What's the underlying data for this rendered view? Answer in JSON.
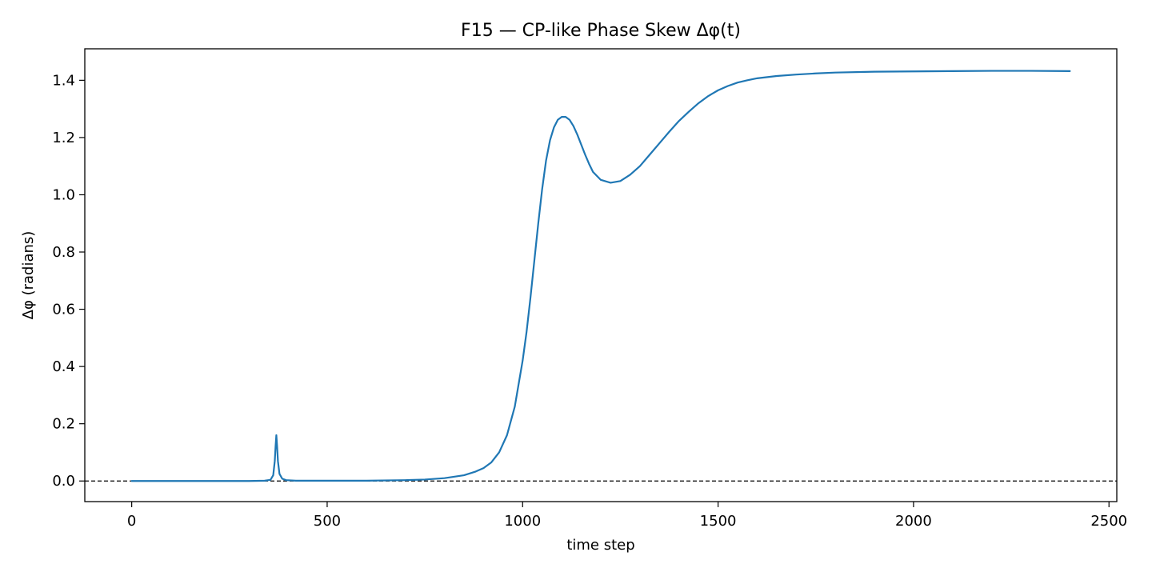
{
  "chart_data": {
    "type": "line",
    "title": "F15 — CP-like Phase Skew Δφ(t)",
    "xlabel": "time step",
    "ylabel": "Δφ (radians)",
    "xlim": [
      -120,
      2520
    ],
    "ylim": [
      -0.072,
      1.51
    ],
    "xticks": [
      0,
      500,
      1000,
      1500,
      2000,
      2500
    ],
    "xtick_labels": [
      "0",
      "500",
      "1000",
      "1500",
      "2000",
      "2500"
    ],
    "yticks": [
      0.0,
      0.2,
      0.4,
      0.6,
      0.8,
      1.0,
      1.2,
      1.4
    ],
    "ytick_labels": [
      "0.0",
      "0.2",
      "0.4",
      "0.6",
      "0.8",
      "1.0",
      "1.2",
      "1.4"
    ],
    "grid": false,
    "reference_line": {
      "y": 0.0,
      "style": "dashed",
      "color": "#000000"
    },
    "series": [
      {
        "color": "#1f77b4",
        "x": [
          0,
          100,
          200,
          300,
          340,
          355,
          362,
          366,
          368,
          370,
          372,
          374,
          378,
          385,
          395,
          420,
          500,
          600,
          700,
          750,
          800,
          850,
          880,
          900,
          920,
          940,
          960,
          980,
          1000,
          1010,
          1020,
          1030,
          1040,
          1050,
          1060,
          1070,
          1080,
          1090,
          1100,
          1110,
          1120,
          1130,
          1140,
          1150,
          1160,
          1170,
          1180,
          1200,
          1225,
          1250,
          1275,
          1300,
          1325,
          1350,
          1375,
          1400,
          1425,
          1450,
          1475,
          1500,
          1525,
          1550,
          1575,
          1600,
          1650,
          1700,
          1750,
          1800,
          1900,
          2000,
          2100,
          2200,
          2300,
          2400
        ],
        "y": [
          0.0,
          0.0,
          0.0,
          0.0,
          0.001,
          0.004,
          0.02,
          0.07,
          0.12,
          0.16,
          0.12,
          0.07,
          0.025,
          0.008,
          0.003,
          0.001,
          0.001,
          0.001,
          0.003,
          0.005,
          0.01,
          0.02,
          0.033,
          0.045,
          0.065,
          0.1,
          0.16,
          0.26,
          0.42,
          0.52,
          0.64,
          0.77,
          0.9,
          1.02,
          1.12,
          1.19,
          1.235,
          1.262,
          1.272,
          1.272,
          1.262,
          1.24,
          1.21,
          1.175,
          1.14,
          1.108,
          1.08,
          1.052,
          1.042,
          1.048,
          1.07,
          1.1,
          1.14,
          1.18,
          1.22,
          1.258,
          1.29,
          1.32,
          1.345,
          1.365,
          1.38,
          1.392,
          1.4,
          1.407,
          1.415,
          1.42,
          1.424,
          1.427,
          1.43,
          1.431,
          1.432,
          1.433,
          1.433,
          1.432
        ]
      }
    ]
  }
}
